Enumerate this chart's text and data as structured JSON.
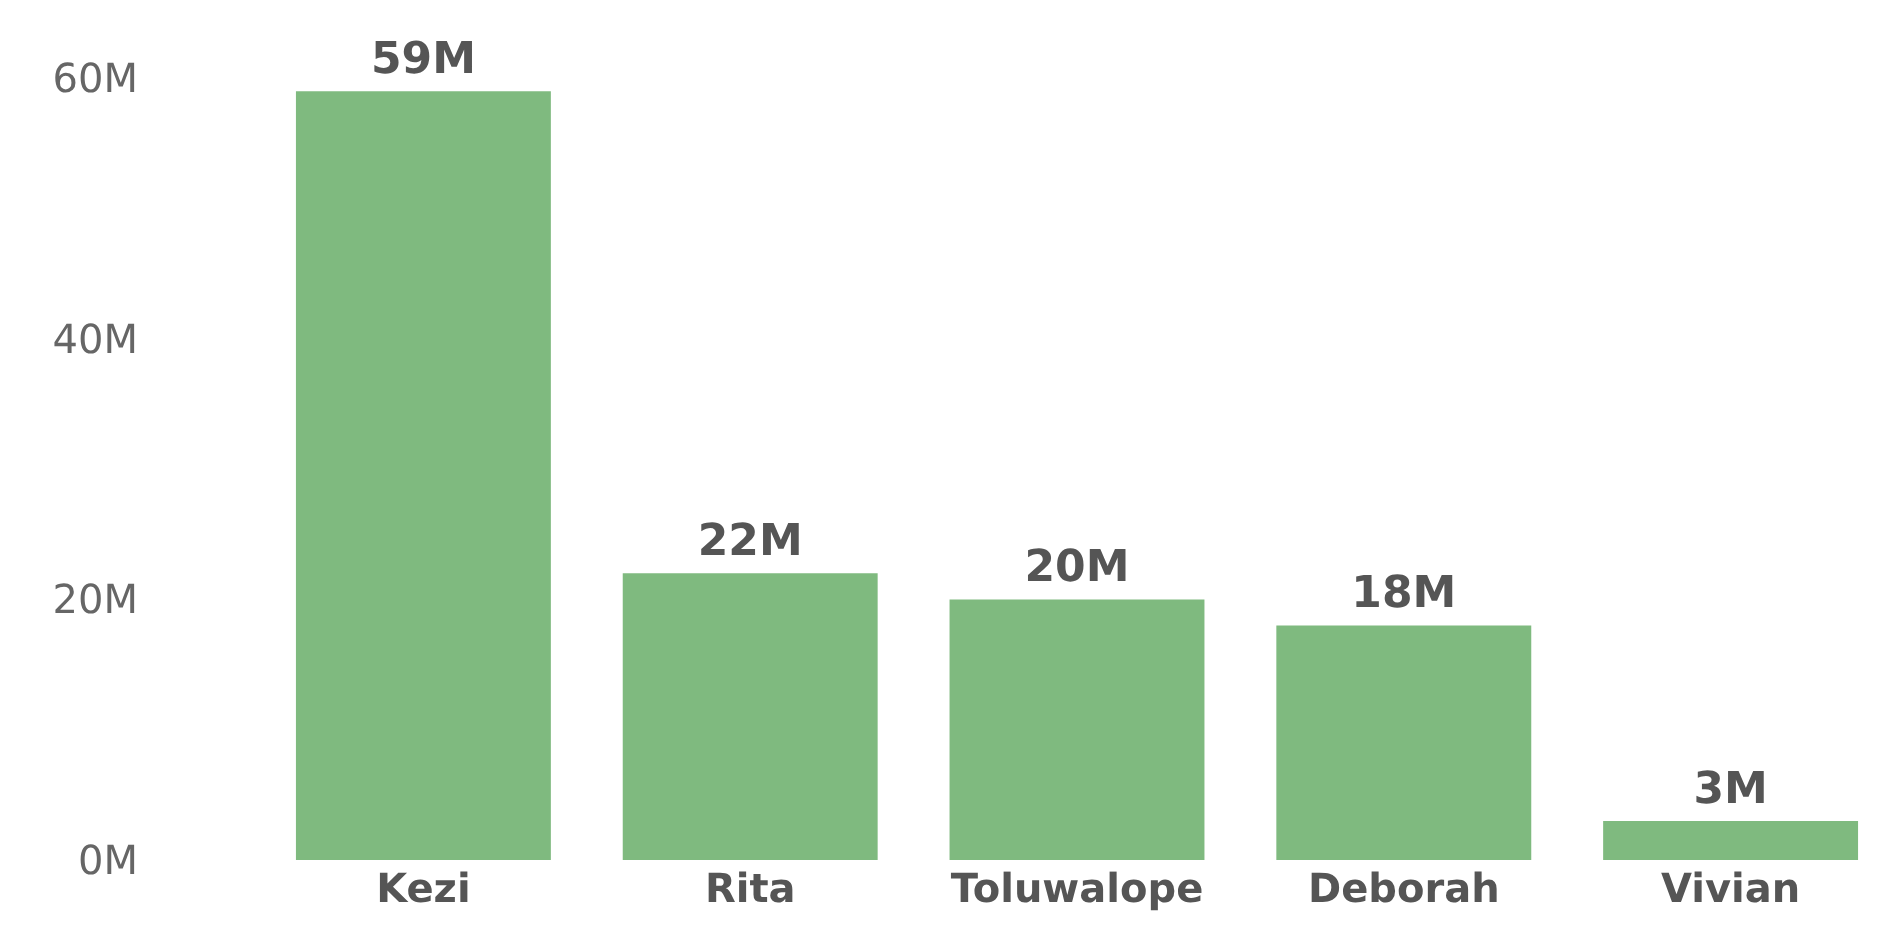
{
  "chart_data": {
    "type": "bar",
    "categories": [
      "Kezi",
      "Rita",
      "Toluwalope",
      "Deborah",
      "Vivian"
    ],
    "values": [
      59,
      22,
      20,
      18,
      3
    ],
    "value_labels": [
      "59M",
      "22M",
      "20M",
      "18M",
      "3M"
    ],
    "color": "#7fba7f",
    "ylim": [
      0,
      66
    ],
    "yticks": [
      {
        "value": 0,
        "label": "0M"
      },
      {
        "value": 20,
        "label": "20M"
      },
      {
        "value": 40,
        "label": "40M"
      },
      {
        "value": 60,
        "label": "60M"
      }
    ],
    "grid": false,
    "legend": false
  }
}
